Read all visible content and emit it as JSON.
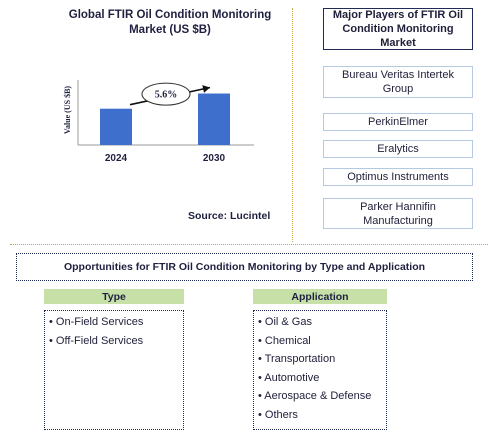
{
  "chart_title": "Global FTIR Oil Condition Monitoring Market (US $B)",
  "chart_data": {
    "type": "bar",
    "categories": [
      "2024",
      "2030"
    ],
    "values": [
      0.55,
      0.78
    ],
    "ylabel": "Value (US $B)",
    "ylim": [
      0,
      1
    ],
    "grid": false,
    "annotation": "5.6%",
    "bar_color": "#3e6fcc"
  },
  "source": "Source: Lucintel",
  "players": {
    "header": "Major Players of FTIR Oil Condition Monitoring Market",
    "items": [
      "Bureau Veritas Intertek Group",
      "PerkinElmer",
      "Eralytics",
      "Optimus Instruments",
      "Parker Hannifin Manufacturing"
    ]
  },
  "opportunities": {
    "header": "Opportunities for FTIR Oil Condition Monitoring by Type and Application",
    "type": {
      "label": "Type",
      "items": [
        "• On-Field Services",
        "• Off-Field Services"
      ]
    },
    "application": {
      "label": "Application",
      "items": [
        "• Oil & Gas",
        "• Chemical",
        "• Transportation",
        "• Automotive",
        "• Aerospace & Defense",
        "• Others"
      ]
    }
  },
  "colors": {
    "header_green": "#c6e0a8",
    "navy": "#1f2a55",
    "player_border": "#b5c9e3",
    "divider": "#c9a84a"
  }
}
